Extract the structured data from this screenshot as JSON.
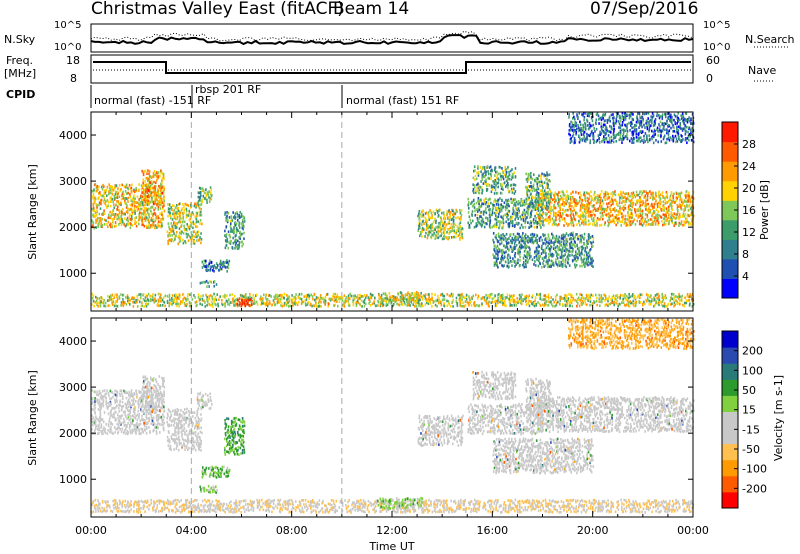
{
  "header": {
    "station": "Christmas Valley East (fitACF)",
    "beam": "Beam 14",
    "date": "07/Sep/2016"
  },
  "strip_labels": {
    "nsky": "N.Sky",
    "nsearch": "N.Search",
    "freq_line1": "Freq.",
    "freq_line2": "[MHz]",
    "nave": "Nave",
    "cpid": "CPID",
    "noise_left_ticks": [
      "10^5",
      "10^0"
    ],
    "noise_right_ticks": [
      "10^5",
      "10^0"
    ],
    "freq_left_ticks": [
      "18",
      "8"
    ],
    "freq_right_ticks": [
      "60",
      "0"
    ]
  },
  "cpid_labels": [
    {
      "text": "normal (fast) -151 RF",
      "start_hour": 0
    },
    {
      "text": "rbsp 201 RF",
      "start_hour": 4
    },
    {
      "text": "normal (fast) 151 RF",
      "start_hour": 10
    }
  ],
  "colors": {
    "power_scale": [
      "#0000ff",
      "#1f4fb0",
      "#2f7f8f",
      "#3c9d6a",
      "#7ec85a",
      "#ffd200",
      "#ff9b00",
      "#ff5a00",
      "#ff1a00"
    ],
    "velocity_scale": [
      "#ff0000",
      "#ff5a00",
      "#ff9b00",
      "#ffc050",
      "#c8c8c8",
      "#c8c8c8",
      "#80d040",
      "#2c9a2c",
      "#2a7a7a",
      "#2a4ab0",
      "#0000cc"
    ],
    "ground_scatter": "#c8c8c8"
  },
  "chart_data": [
    {
      "type": "heatmap",
      "panel": "power",
      "ylabel": "Slant Range [km]",
      "xlabel": "",
      "xlim_hours": [
        0,
        24
      ],
      "ylim": [
        180,
        4500
      ],
      "y_ticks": [
        "1000",
        "2000",
        "3000",
        "4000"
      ],
      "colorbar_label": "Power [dB]",
      "colorbar_ticks": [
        "4",
        "8",
        "12",
        "16",
        "20",
        "24",
        "28"
      ],
      "colorbar_range": [
        0,
        32
      ],
      "regions": [
        {
          "t0": 0.0,
          "t1": 2.9,
          "r0": 1950,
          "r1": 2900,
          "v": 20
        },
        {
          "t0": 2.0,
          "t1": 2.9,
          "r0": 2450,
          "r1": 3200,
          "v": 22
        },
        {
          "t0": 3.0,
          "t1": 4.4,
          "r0": 1600,
          "r1": 2500,
          "v": 18
        },
        {
          "t0": 4.2,
          "t1": 4.8,
          "r0": 2500,
          "r1": 2850,
          "v": 14
        },
        {
          "t0": 5.3,
          "t1": 6.1,
          "r0": 1500,
          "r1": 2300,
          "v": 11
        },
        {
          "t0": 4.4,
          "t1": 5.5,
          "r0": 1000,
          "r1": 1250,
          "v": 9
        },
        {
          "t0": 4.3,
          "t1": 5.0,
          "r0": 680,
          "r1": 820,
          "v": 12
        },
        {
          "t0": 0.0,
          "t1": 24.0,
          "r0": 250,
          "r1": 520,
          "v": 18
        },
        {
          "t0": 5.8,
          "t1": 6.4,
          "r0": 260,
          "r1": 420,
          "v": 30
        },
        {
          "t0": 11.4,
          "t1": 13.2,
          "r0": 320,
          "r1": 560,
          "v": 18
        },
        {
          "t0": 13.0,
          "t1": 14.8,
          "r0": 1700,
          "r1": 2350,
          "v": 17
        },
        {
          "t0": 15.2,
          "t1": 16.9,
          "r0": 2700,
          "r1": 3300,
          "v": 13
        },
        {
          "t0": 15.0,
          "t1": 18.0,
          "r0": 1950,
          "r1": 2600,
          "v": 12
        },
        {
          "t0": 16.0,
          "t1": 20.0,
          "r0": 1100,
          "r1": 1850,
          "v": 11
        },
        {
          "t0": 17.8,
          "t1": 24.0,
          "r0": 2000,
          "r1": 2750,
          "v": 21
        },
        {
          "t0": 17.3,
          "t1": 18.3,
          "r0": 2350,
          "r1": 3150,
          "v": 13
        },
        {
          "t0": 19.0,
          "t1": 24.0,
          "r0": 3800,
          "r1": 4450,
          "v": 8
        }
      ]
    },
    {
      "type": "heatmap",
      "panel": "velocity",
      "ylabel": "Slant Range [km]",
      "xlabel": "Time UT",
      "xlim_hours": [
        0,
        24
      ],
      "ylim": [
        180,
        4500
      ],
      "x_ticks": [
        "00:00",
        "04:00",
        "08:00",
        "12:00",
        "16:00",
        "20:00",
        "00:00"
      ],
      "y_ticks": [
        "1000",
        "2000",
        "3000",
        "4000"
      ],
      "colorbar_label": "Velocity [m s-1]",
      "colorbar_ticks": [
        "-200",
        "-100",
        "-50",
        "-15",
        "15",
        "50",
        "100",
        "200"
      ],
      "colorbar_range": [
        -250,
        250
      ],
      "regions": [
        {
          "t0": 0.0,
          "t1": 2.9,
          "r0": 1950,
          "r1": 2900,
          "v": 0,
          "gs": true
        },
        {
          "t0": 2.0,
          "t1": 2.9,
          "r0": 2450,
          "r1": 3200,
          "v": 0,
          "gs": true
        },
        {
          "t0": 3.0,
          "t1": 4.4,
          "r0": 1600,
          "r1": 2500,
          "v": 0,
          "gs": true
        },
        {
          "t0": 4.2,
          "t1": 4.8,
          "r0": 2500,
          "r1": 2850,
          "v": 0,
          "gs": true
        },
        {
          "t0": 5.3,
          "t1": 6.1,
          "r0": 1500,
          "r1": 2300,
          "v": 80
        },
        {
          "t0": 4.4,
          "t1": 5.5,
          "r0": 1000,
          "r1": 1250,
          "v": 60
        },
        {
          "t0": 4.3,
          "t1": 5.0,
          "r0": 680,
          "r1": 820,
          "v": 40
        },
        {
          "t0": 0.0,
          "t1": 24.0,
          "r0": 250,
          "r1": 520,
          "v": -60
        },
        {
          "t0": 11.4,
          "t1": 13.2,
          "r0": 320,
          "r1": 560,
          "v": 40
        },
        {
          "t0": 13.0,
          "t1": 14.8,
          "r0": 1700,
          "r1": 2350,
          "v": 0,
          "gs": true
        },
        {
          "t0": 15.2,
          "t1": 16.9,
          "r0": 2700,
          "r1": 3300,
          "v": 0,
          "gs": true
        },
        {
          "t0": 15.0,
          "t1": 18.0,
          "r0": 1950,
          "r1": 2600,
          "v": 0,
          "gs": true
        },
        {
          "t0": 16.0,
          "t1": 20.0,
          "r0": 1100,
          "r1": 1850,
          "v": 0,
          "gs": true
        },
        {
          "t0": 17.8,
          "t1": 24.0,
          "r0": 2000,
          "r1": 2750,
          "v": 0,
          "gs": true
        },
        {
          "t0": 17.3,
          "t1": 18.3,
          "r0": 2350,
          "r1": 3150,
          "v": 0,
          "gs": true
        },
        {
          "t0": 19.0,
          "t1": 24.0,
          "r0": 3800,
          "r1": 4450,
          "v": -120
        }
      ]
    }
  ]
}
